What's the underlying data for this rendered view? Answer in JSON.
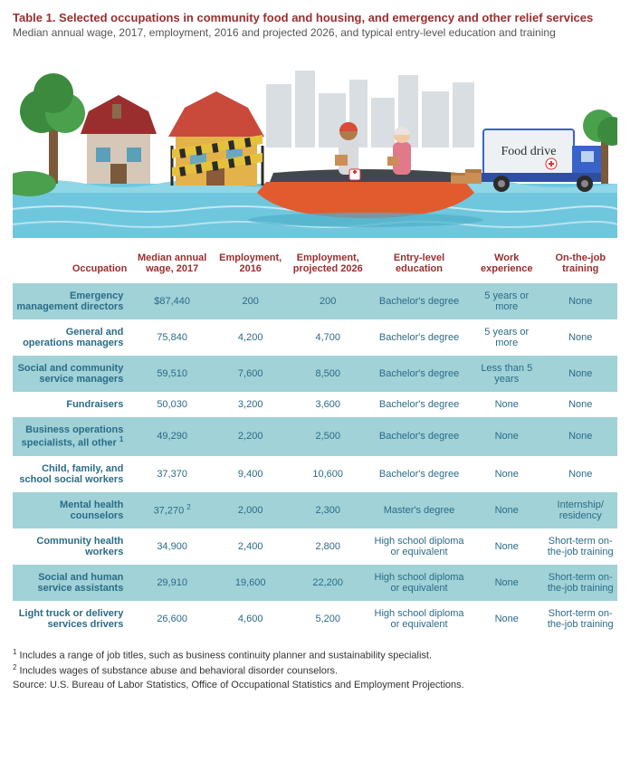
{
  "title": "Table 1. Selected occupations in community food and housing, and emergency and other relief services",
  "subtitle": "Median annual wage, 2017, employment, 2016 and projected 2026, and typical entry-level education and training",
  "colors": {
    "heading": "#9a2e2e",
    "cell_text": "#2b6b87",
    "band_a": "#a0d2d7",
    "band_b": "#ffffff",
    "water": "#6fc7de",
    "sky": "#e9eef1",
    "grass": "#83b04a",
    "tree": "#3b8a3e",
    "boat": "#e25b2f",
    "boat_dark": "#40484d",
    "house1_roof": "#9a2e2e",
    "house1_wall": "#d7c7b8",
    "house2_roof": "#c94a3b",
    "house2_wall": "#e4b24a",
    "truck": "#3a63c9",
    "box": "#c98f55",
    "tape": "#e6c23a"
  },
  "illustration": {
    "truck_label": "Food drive"
  },
  "columns": [
    "Occupation",
    "Median annual wage, 2017",
    "Employment, 2016",
    "Employment, projected 2026",
    "Entry-level education",
    "Work experience",
    "On-the-job training"
  ],
  "rows": [
    {
      "occ": "Emergency management directors",
      "wage": "$87,440",
      "emp16": "200",
      "emp26": "200",
      "edu": "Bachelor's degree",
      "wexp": "5 years or more",
      "ojt": "None"
    },
    {
      "occ": "General and operations managers",
      "wage": "75,840",
      "emp16": "4,200",
      "emp26": "4,700",
      "edu": "Bachelor's degree",
      "wexp": "5 years or more",
      "ojt": "None"
    },
    {
      "occ": "Social and community service managers",
      "wage": "59,510",
      "emp16": "7,600",
      "emp26": "8,500",
      "edu": "Bachelor's degree",
      "wexp": "Less than 5 years",
      "ojt": "None"
    },
    {
      "occ": "Fundraisers",
      "wage": "50,030",
      "emp16": "3,200",
      "emp26": "3,600",
      "edu": "Bachelor's degree",
      "wexp": "None",
      "ojt": "None"
    },
    {
      "occ": "Business operations specialists, all other",
      "sup_occ": "1",
      "wage": "49,290",
      "emp16": "2,200",
      "emp26": "2,500",
      "edu": "Bachelor's degree",
      "wexp": "None",
      "ojt": "None"
    },
    {
      "occ": "Child, family, and school social workers",
      "wage": "37,370",
      "emp16": "9,400",
      "emp26": "10,600",
      "edu": "Bachelor's degree",
      "wexp": "None",
      "ojt": "None"
    },
    {
      "occ": "Mental health counselors",
      "wage": "37,270",
      "sup_wage": "2",
      "emp16": "2,000",
      "emp26": "2,300",
      "edu": "Master's degree",
      "wexp": "None",
      "ojt": "Internship/ residency"
    },
    {
      "occ": "Community health workers",
      "wage": "34,900",
      "emp16": "2,400",
      "emp26": "2,800",
      "edu": "High school diploma or equivalent",
      "wexp": "None",
      "ojt": "Short-term on-the-job training"
    },
    {
      "occ": "Social and human service assistants",
      "wage": "29,910",
      "emp16": "19,600",
      "emp26": "22,200",
      "edu": "High school diploma or equivalent",
      "wexp": "None",
      "ojt": "Short-term on-the-job training"
    },
    {
      "occ": "Light truck or delivery services drivers",
      "wage": "26,600",
      "emp16": "4,600",
      "emp26": "5,200",
      "edu": "High school diploma or equivalent",
      "wexp": "None",
      "ojt": "Short-term on-the-job training"
    }
  ],
  "footnotes": {
    "f1_label": "1",
    "f1": " Includes a range of job titles, such as business continuity planner and sustainability specialist.",
    "f2_label": "2",
    "f2": " Includes wages of substance abuse and behavioral disorder counselors.",
    "source": "Source: U.S. Bureau of Labor Statistics, Office of Occupational Statistics and Employment Projections."
  }
}
